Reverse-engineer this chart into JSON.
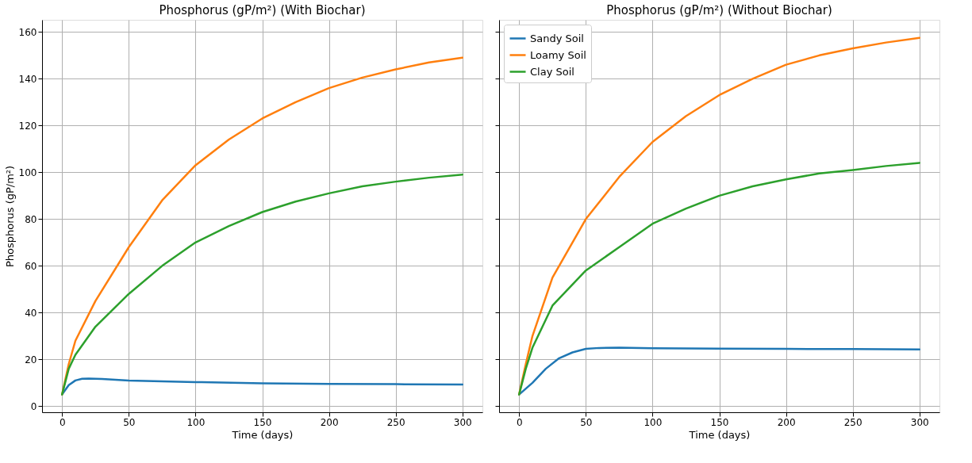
{
  "chart_data": [
    {
      "type": "line",
      "title": "Phosphorus (gP/m²) (With Biochar)",
      "xlabel": "Time (days)",
      "ylabel": "Phosphorus (gP/m²)",
      "xlim": [
        -15,
        315
      ],
      "ylim": [
        -2.6,
        165.2
      ],
      "xticks": [
        0,
        50,
        100,
        150,
        200,
        250,
        300
      ],
      "yticks": [
        0,
        20,
        40,
        60,
        80,
        100,
        120,
        140,
        160
      ],
      "grid": true,
      "legend": false,
      "line_style": "solid",
      "marker": "none",
      "series": [
        {
          "color": "#1f77b4",
          "x": [
            0,
            5,
            10,
            15,
            20,
            30,
            50,
            75,
            100,
            150,
            200,
            250,
            300
          ],
          "values": [
            5,
            9,
            11,
            11.7,
            11.8,
            11.6,
            11,
            10.6,
            10.3,
            9.8,
            9.5,
            9.4,
            9.3
          ]
        },
        {
          "color": "#ff7f0e",
          "x": [
            0,
            5,
            10,
            25,
            50,
            75,
            100,
            125,
            150,
            175,
            200,
            225,
            250,
            275,
            300
          ],
          "values": [
            5,
            18,
            28,
            45,
            68,
            88,
            103,
            114,
            123,
            130,
            136,
            140.5,
            144,
            147,
            149
          ]
        },
        {
          "color": "#2ca02c",
          "x": [
            0,
            5,
            10,
            25,
            50,
            75,
            100,
            125,
            150,
            175,
            200,
            225,
            250,
            275,
            300
          ],
          "values": [
            5,
            16,
            22,
            34,
            48,
            60,
            70,
            77,
            83,
            87.5,
            91,
            94,
            96,
            97.7,
            99
          ]
        }
      ]
    },
    {
      "type": "line",
      "title": "Phosphorus (gP/m²) (Without Biochar)",
      "xlabel": "Time (days)",
      "xlim": [
        -15,
        315
      ],
      "ylim": [
        -2.6,
        165.2
      ],
      "xticks": [
        0,
        50,
        100,
        150,
        200,
        250,
        300
      ],
      "yticks": [
        0,
        20,
        40,
        60,
        80,
        100,
        120,
        140,
        160
      ],
      "grid": true,
      "legend": "top left",
      "tick_labels": "x",
      "line_style": "solid",
      "marker": "none",
      "series": [
        {
          "name": "Sandy Soil",
          "color": "#1f77b4",
          "x": [
            0,
            10,
            20,
            30,
            40,
            50,
            60,
            75,
            100,
            150,
            200,
            250,
            300
          ],
          "values": [
            5,
            10,
            16,
            20.5,
            23,
            24.5,
            24.9,
            25,
            24.8,
            24.6,
            24.5,
            24.4,
            24.3
          ]
        },
        {
          "name": "Loamy Soil",
          "color": "#ff7f0e",
          "x": [
            0,
            5,
            10,
            25,
            50,
            75,
            100,
            125,
            150,
            175,
            200,
            225,
            250,
            275,
            300
          ],
          "values": [
            5,
            18,
            30,
            55,
            80,
            98,
            113,
            124,
            133,
            140,
            146,
            150,
            153,
            155.5,
            157.5
          ]
        },
        {
          "name": "Clay Soil",
          "color": "#2ca02c",
          "x": [
            0,
            5,
            10,
            25,
            50,
            75,
            100,
            125,
            150,
            175,
            200,
            225,
            250,
            275,
            300
          ],
          "values": [
            5,
            16,
            25,
            43,
            58,
            68,
            78,
            84.5,
            90,
            94,
            97,
            99.5,
            101,
            102.7,
            104
          ]
        }
      ]
    }
  ]
}
